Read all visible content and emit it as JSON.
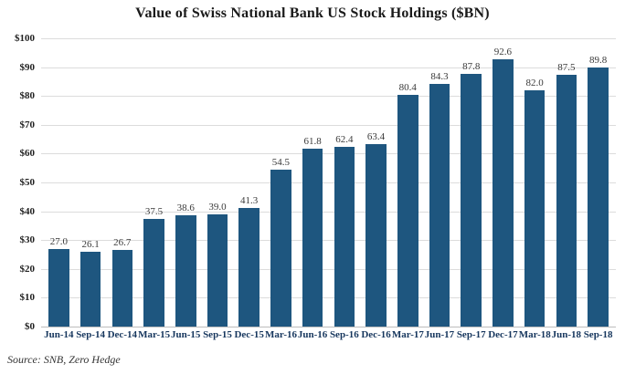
{
  "chart_data": {
    "type": "bar",
    "title": "Value of Swiss National Bank US Stock Holdings ($BN)",
    "source": "Source: SNB, Zero Hedge",
    "categories": [
      "Jun-14",
      "Sep-14",
      "Dec-14",
      "Mar-15",
      "Jun-15",
      "Sep-15",
      "Dec-15",
      "Mar-16",
      "Jun-16",
      "Sep-16",
      "Dec-16",
      "Mar-17",
      "Jun-17",
      "Sep-17",
      "Dec-17",
      "Mar-18",
      "Jun-18",
      "Sep-18"
    ],
    "values": [
      27.0,
      26.1,
      26.7,
      37.5,
      38.6,
      39.0,
      41.3,
      54.5,
      61.8,
      62.4,
      63.4,
      80.4,
      84.3,
      87.8,
      92.6,
      82.0,
      87.5,
      89.8
    ],
    "xlabel": "",
    "ylabel": "",
    "ylim": [
      0,
      100
    ],
    "y_tick_step": 10,
    "y_tick_prefix": "$",
    "grid": "horizontal",
    "legend": "none",
    "bar_color": "#1e567f",
    "value_label_decimals": 1
  }
}
